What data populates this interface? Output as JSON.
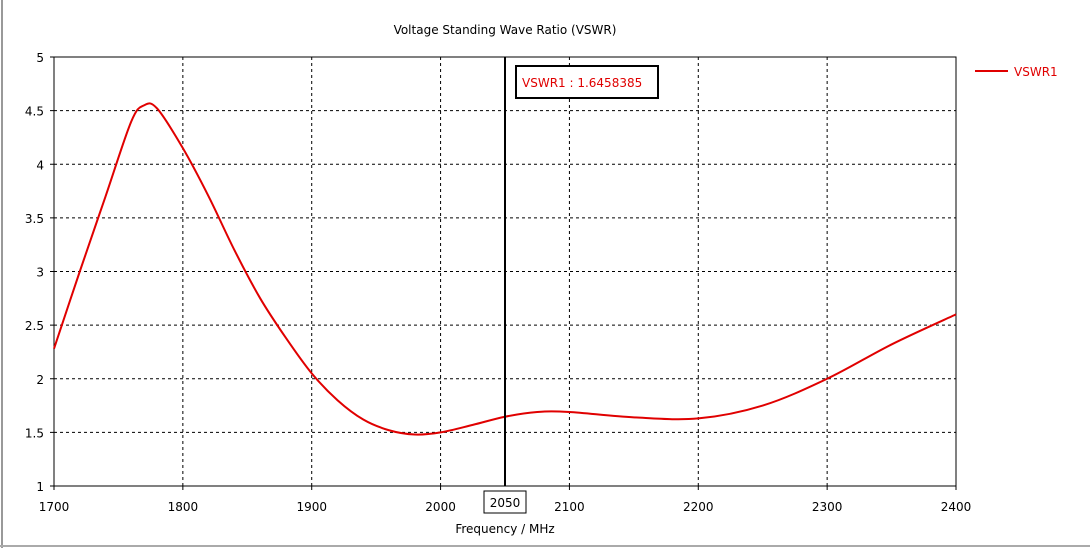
{
  "chart_data": {
    "type": "line",
    "title": "Voltage Standing Wave Ratio (VSWR)",
    "xlabel": "Frequency / MHz",
    "ylabel": "",
    "xlim": [
      1700,
      2400
    ],
    "ylim": [
      1,
      5
    ],
    "xticks": [
      "1700",
      "1800",
      "1900",
      "2000",
      "2100",
      "2200",
      "2300",
      "2400"
    ],
    "yticks": [
      "1",
      "1.5",
      "2",
      "2.5",
      "3",
      "3.5",
      "4",
      "4.5",
      "5"
    ],
    "grid": true,
    "legend_placement": "right",
    "series": [
      {
        "name": "VSWR1",
        "color": "#e00000",
        "x": [
          1700,
          1720,
          1740,
          1760,
          1770,
          1780,
          1800,
          1820,
          1840,
          1860,
          1880,
          1900,
          1920,
          1940,
          1960,
          1980,
          2000,
          2025,
          2050,
          2075,
          2100,
          2150,
          2200,
          2250,
          2300,
          2350,
          2400
        ],
        "y": [
          2.28,
          3.0,
          3.7,
          4.4,
          4.55,
          4.52,
          4.15,
          3.7,
          3.2,
          2.75,
          2.38,
          2.05,
          1.8,
          1.62,
          1.52,
          1.48,
          1.5,
          1.57,
          1.646,
          1.69,
          1.69,
          1.64,
          1.63,
          1.75,
          2.0,
          2.32,
          2.6
        ]
      }
    ],
    "marker": {
      "x": 2050,
      "x_label": "2050",
      "readout": "VSWR1 : 1.6458385"
    }
  }
}
